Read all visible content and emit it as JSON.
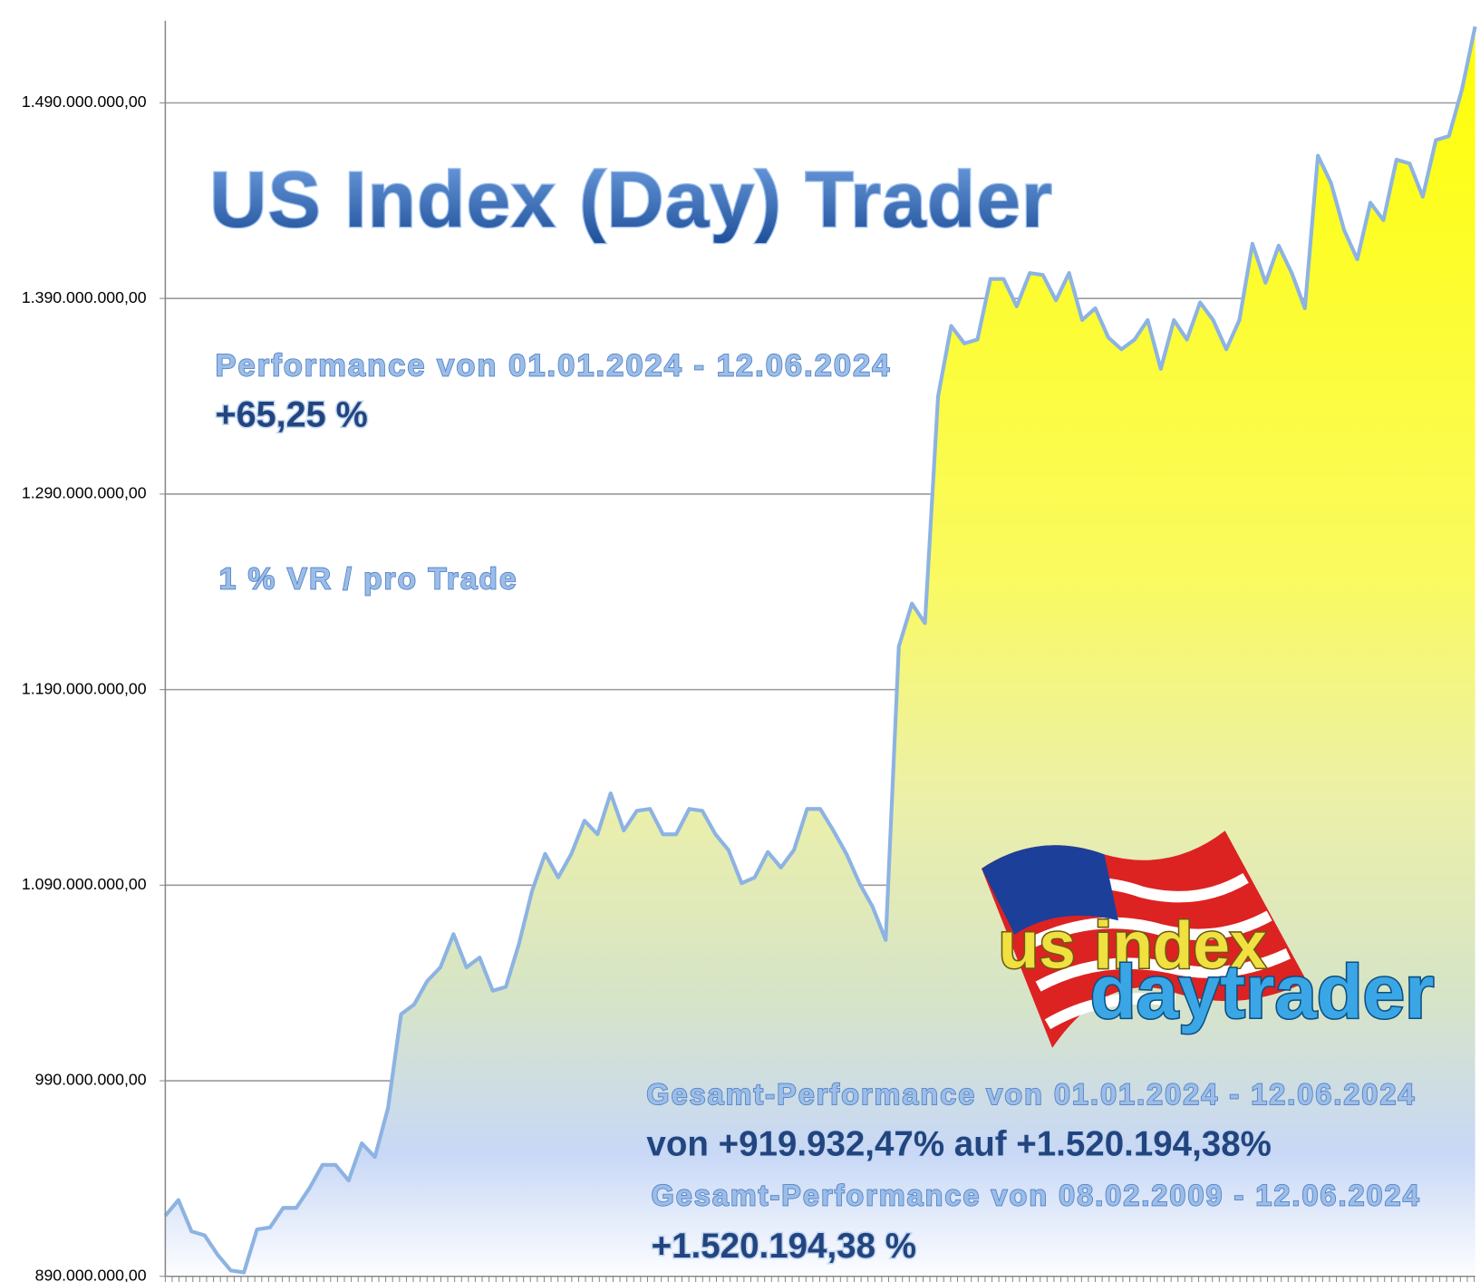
{
  "chart_data": {
    "type": "area",
    "title": "US Index (Day) Trader",
    "annotations": [
      "Performance  von  01.01.2024 - 12.06.2024",
      "+65,25 %",
      "1 % VR / pro Trade",
      "Gesamt-Performance  von  01.01.2024 - 12.06.2024",
      "von +919.932,47% auf  +1.520.194,38%",
      "Gesamt-Performance  von  08.02.2009 - 12.06.2024",
      "+1.520.194,38 %"
    ],
    "logo": {
      "line1": "us index",
      "line2": "daytrader"
    },
    "values": [
      921000000,
      929000000,
      913000000,
      911000000,
      901000000,
      893000000,
      892000000,
      914000000,
      915000000,
      925000000,
      925000000,
      935000000,
      947000000,
      947000000,
      939000000,
      958000000,
      951000000,
      976000000,
      1024000000,
      1029000000,
      1041000000,
      1048000000,
      1065000000,
      1048000000,
      1053000000,
      1036000000,
      1038000000,
      1060000000,
      1087000000,
      1106000000,
      1094000000,
      1106000000,
      1123000000,
      1116000000,
      1137000000,
      1118000000,
      1128000000,
      1129000000,
      1116000000,
      1116000000,
      1129000000,
      1128000000,
      1116000000,
      1108000000,
      1091000000,
      1094000000,
      1107000000,
      1099000000,
      1108000000,
      1129000000,
      1129000000,
      1118000000,
      1106000000,
      1091000000,
      1079000000,
      1062000000,
      1212000000,
      1234000000,
      1224000000,
      1340000000,
      1376000000,
      1367000000,
      1369000000,
      1400000000,
      1400000000,
      1386000000,
      1403000000,
      1402000000,
      1389000000,
      1403000000,
      1379000000,
      1385000000,
      1370000000,
      1364000000,
      1369000000,
      1379000000,
      1354000000,
      1379000000,
      1369000000,
      1388000000,
      1379000000,
      1364000000,
      1379000000,
      1418000000,
      1398000000,
      1417000000,
      1403000000,
      1385000000,
      1463000000,
      1449000000,
      1425000000,
      1410000000,
      1439000000,
      1430000000,
      1461000000,
      1459000000,
      1442000000,
      1471000000,
      1473000000,
      1497000000,
      1529000000
    ],
    "color": "#ffff00",
    "line_color": "#8db3e2",
    "ylim": [
      890000000,
      1532000000
    ],
    "yticks": [
      {
        "value": 890000000,
        "label": "890.000.000,00"
      },
      {
        "value": 990000000,
        "label": "990.000.000,00"
      },
      {
        "value": 1090000000,
        "label": "1.090.000.000,00"
      },
      {
        "value": 1190000000,
        "label": "1.190.000.000,00"
      },
      {
        "value": 1290000000,
        "label": "1.290.000.000,00"
      },
      {
        "value": 1390000000,
        "label": "1.390.000.000,00"
      },
      {
        "value": 1490000000,
        "label": "1.490.000.000,00"
      }
    ],
    "grid": true
  }
}
